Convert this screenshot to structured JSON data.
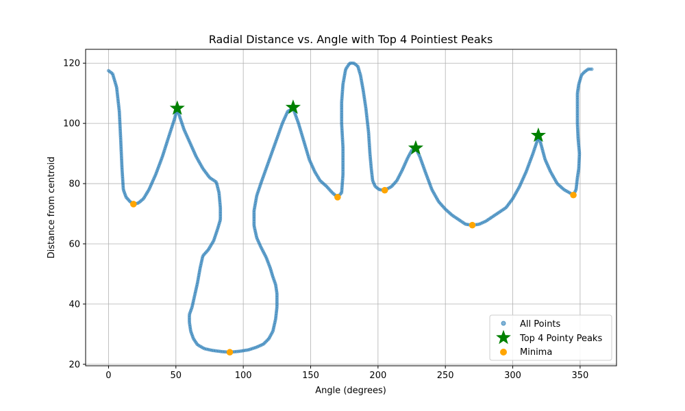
{
  "chart_data": {
    "type": "scatter",
    "title": "Radial Distance vs. Angle with Top 4 Pointiest Peaks",
    "xlabel": "Angle (degrees)",
    "ylabel": "Distance from centroid",
    "xlim": [
      -17,
      377
    ],
    "ylim": [
      19.5,
      124.6
    ],
    "xticks": [
      0,
      50,
      100,
      150,
      200,
      250,
      300,
      350
    ],
    "yticks": [
      20,
      40,
      60,
      80,
      100,
      120
    ],
    "grid": true,
    "legend_position": "lower-right",
    "colors": {
      "points": "#1f77b4",
      "peaks": "#008000",
      "minima": "#ffa500"
    },
    "series": [
      {
        "name": "All Points",
        "marker": "circle",
        "path": [
          [
            0,
            117.5
          ],
          [
            3,
            116.5
          ],
          [
            6,
            112
          ],
          [
            8,
            104
          ],
          [
            9,
            95
          ],
          [
            10,
            85
          ],
          [
            11,
            78
          ],
          [
            13,
            75.5
          ],
          [
            16,
            74
          ],
          [
            18.5,
            73.2
          ],
          [
            22,
            73.5
          ],
          [
            26,
            75
          ],
          [
            30,
            78
          ],
          [
            35,
            83
          ],
          [
            40,
            89
          ],
          [
            45,
            96
          ],
          [
            49,
            101.5
          ],
          [
            51,
            105
          ],
          [
            53,
            102
          ],
          [
            56,
            98
          ],
          [
            60,
            94
          ],
          [
            65,
            89
          ],
          [
            70,
            85
          ],
          [
            75,
            82
          ],
          [
            80,
            80.5
          ],
          [
            82,
            77
          ],
          [
            83,
            72
          ],
          [
            83,
            68
          ],
          [
            81,
            65
          ],
          [
            78,
            61
          ],
          [
            74,
            58
          ],
          [
            70,
            56
          ],
          [
            68,
            52
          ],
          [
            66,
            47
          ],
          [
            64,
            43
          ],
          [
            62,
            39
          ],
          [
            60,
            36.5
          ],
          [
            60,
            34
          ],
          [
            61,
            31
          ],
          [
            63,
            28.5
          ],
          [
            66,
            26.5
          ],
          [
            71,
            25.2
          ],
          [
            77,
            24.6
          ],
          [
            84,
            24.2
          ],
          [
            90,
            24
          ],
          [
            97,
            24.3
          ],
          [
            104,
            24.8
          ],
          [
            110,
            25.7
          ],
          [
            115,
            26.7
          ],
          [
            119,
            28.5
          ],
          [
            122,
            31
          ],
          [
            124,
            35
          ],
          [
            125,
            39
          ],
          [
            125,
            43.5
          ],
          [
            124,
            46.5
          ],
          [
            122,
            49
          ],
          [
            120,
            52
          ],
          [
            117,
            55.5
          ],
          [
            113,
            59
          ],
          [
            110,
            62
          ],
          [
            108,
            66
          ],
          [
            108,
            71
          ],
          [
            110,
            76
          ],
          [
            113,
            80
          ],
          [
            117,
            85
          ],
          [
            121,
            90
          ],
          [
            125,
            95
          ],
          [
            129,
            100
          ],
          [
            133,
            104
          ],
          [
            137,
            105
          ],
          [
            141,
            100
          ],
          [
            145,
            94
          ],
          [
            149,
            88
          ],
          [
            153,
            84
          ],
          [
            157,
            81
          ],
          [
            162,
            79
          ],
          [
            166,
            77
          ],
          [
            170,
            75.5
          ],
          [
            173,
            77
          ],
          [
            174,
            83
          ],
          [
            174,
            92
          ],
          [
            173,
            100
          ],
          [
            173,
            107
          ],
          [
            174,
            113
          ],
          [
            176,
            118
          ],
          [
            179,
            120
          ],
          [
            182,
            120
          ],
          [
            185,
            119
          ],
          [
            187,
            116
          ],
          [
            189,
            111
          ],
          [
            191,
            105
          ],
          [
            193,
            97
          ],
          [
            194,
            90
          ],
          [
            195,
            85
          ],
          [
            196,
            81
          ],
          [
            198,
            79
          ],
          [
            201,
            78
          ],
          [
            205,
            77.8
          ],
          [
            210,
            79
          ],
          [
            214,
            81
          ],
          [
            218,
            84.5
          ],
          [
            222,
            88.5
          ],
          [
            225,
            91
          ],
          [
            228,
            91.8
          ],
          [
            231,
            89
          ],
          [
            235,
            84
          ],
          [
            240,
            78
          ],
          [
            245,
            74
          ],
          [
            250,
            71.5
          ],
          [
            255,
            69.5
          ],
          [
            260,
            68
          ],
          [
            265,
            66.5
          ],
          [
            270,
            66.2
          ],
          [
            275,
            66.5
          ],
          [
            280,
            67.5
          ],
          [
            285,
            69
          ],
          [
            290,
            70.5
          ],
          [
            295,
            72
          ],
          [
            300,
            75
          ],
          [
            305,
            79
          ],
          [
            310,
            84
          ],
          [
            315,
            90
          ],
          [
            318,
            94
          ],
          [
            319,
            96
          ],
          [
            321,
            93
          ],
          [
            324,
            88
          ],
          [
            328,
            84
          ],
          [
            333,
            80
          ],
          [
            338,
            78
          ],
          [
            342,
            77
          ],
          [
            345,
            76.2
          ],
          [
            347,
            78
          ],
          [
            348,
            82
          ],
          [
            349,
            85
          ],
          [
            349.5,
            90
          ],
          [
            348.5,
            95
          ],
          [
            348,
            100
          ],
          [
            348,
            105
          ],
          [
            348,
            110
          ],
          [
            349,
            113
          ],
          [
            351,
            116
          ],
          [
            353,
            117
          ],
          [
            356,
            118
          ],
          [
            359,
            118
          ]
        ]
      },
      {
        "name": "Top 4 Pointy Peaks",
        "marker": "star",
        "points": [
          [
            51,
            105
          ],
          [
            137,
            105.3
          ],
          [
            228,
            91.8
          ],
          [
            319,
            96
          ]
        ]
      },
      {
        "name": "Minima",
        "marker": "circle",
        "points": [
          [
            18.5,
            73.2
          ],
          [
            90,
            24
          ],
          [
            170,
            75.5
          ],
          [
            205,
            77.8
          ],
          [
            270,
            66.2
          ],
          [
            345,
            76.2
          ]
        ]
      }
    ]
  }
}
